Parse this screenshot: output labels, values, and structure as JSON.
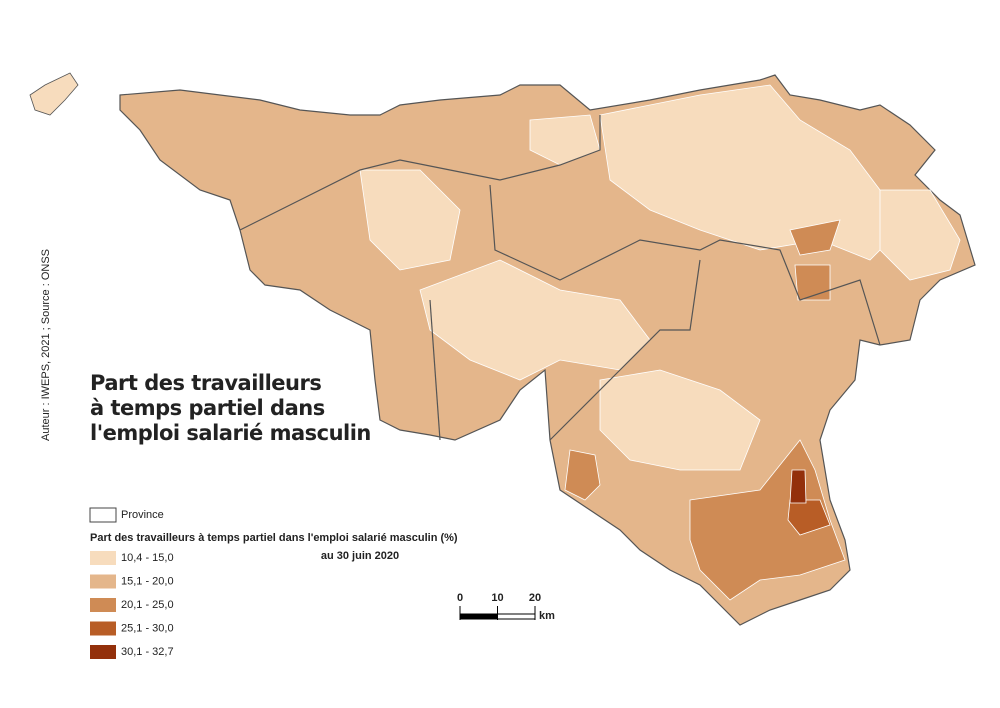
{
  "title": [
    "Part des travailleurs",
    "à temps partiel dans",
    "l'emploi salarié masculin"
  ],
  "source": "Auteur : IWEPS, 2021 ; Source : ONSS",
  "legend": {
    "province": "Province",
    "heading": "Part des travailleurs à temps partiel dans l'emploi salarié masculin (%)",
    "date": "au 30 juin 2020",
    "classes": [
      {
        "label": "10,4 - 15,0",
        "color": "#f7dcbd"
      },
      {
        "label": "15,1 - 20,0",
        "color": "#e4b68b"
      },
      {
        "label": "20,1 - 25,0",
        "color": "#cf8b55"
      },
      {
        "label": "25,1 - 30,0",
        "color": "#b85d26"
      },
      {
        "label": "30,1 - 32,7",
        "color": "#93300b"
      }
    ]
  },
  "scale": {
    "ticks": [
      0,
      10,
      20
    ],
    "unit": "km"
  }
}
